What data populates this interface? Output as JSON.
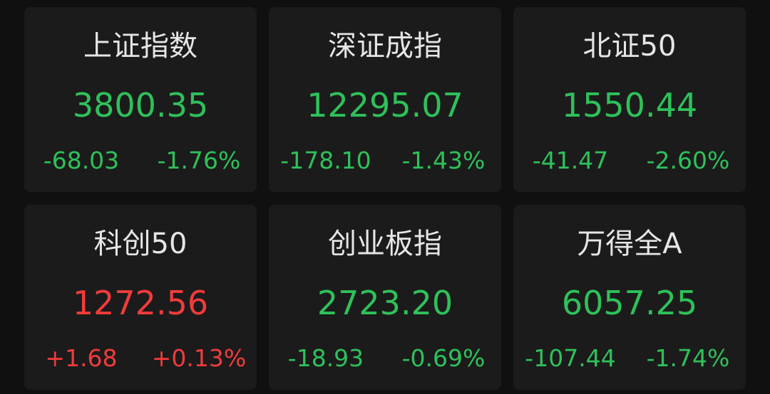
{
  "colors": {
    "up": "#f23b3b",
    "down": "#2ec15a",
    "background": "#101010",
    "card": "#1b1b1b"
  },
  "indices": [
    {
      "name": "上证指数",
      "value": "3800.35",
      "change": "-68.03",
      "percent": "-1.76%",
      "trend": "down"
    },
    {
      "name": "深证成指",
      "value": "12295.07",
      "change": "-178.10",
      "percent": "-1.43%",
      "trend": "down"
    },
    {
      "name": "北证50",
      "value": "1550.44",
      "change": "-41.47",
      "percent": "-2.60%",
      "trend": "down"
    },
    {
      "name": "科创50",
      "value": "1272.56",
      "change": "+1.68",
      "percent": "+0.13%",
      "trend": "up"
    },
    {
      "name": "创业板指",
      "value": "2723.20",
      "change": "-18.93",
      "percent": "-0.69%",
      "trend": "down"
    },
    {
      "name": "万得全A",
      "value": "6057.25",
      "change": "-107.44",
      "percent": "-1.74%",
      "trend": "down"
    }
  ]
}
